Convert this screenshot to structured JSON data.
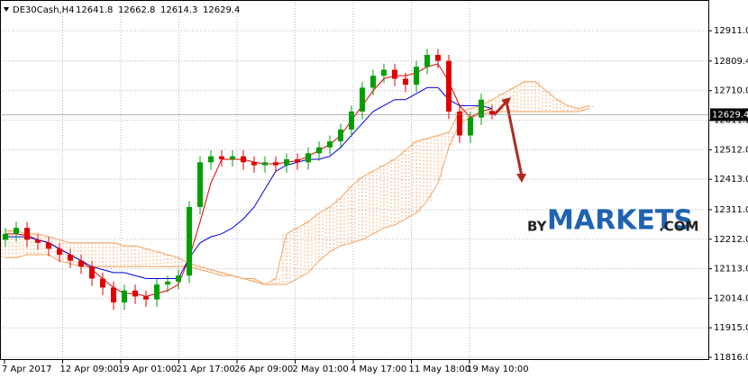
{
  "chart_data": {
    "type": "candlestick",
    "header": {
      "symbol": "DE30Cash,H4",
      "open": 12641.8,
      "high": 12662.8,
      "low": 12614.3,
      "close": 12629.4
    },
    "current_price": {
      "value": 12629.4,
      "label": "12629.4"
    },
    "ylim": [
      11807,
      13014
    ],
    "yticks": [
      {
        "value": 11816,
        "label": "11816.0"
      },
      {
        "value": 11915,
        "label": "11915.0"
      },
      {
        "value": 12014,
        "label": "12014.0"
      },
      {
        "value": 12113,
        "label": "12113.0"
      },
      {
        "value": 12212,
        "label": "12212.0"
      },
      {
        "value": 12311,
        "label": "12311.0"
      },
      {
        "value": 12413,
        "label": "12413.0"
      },
      {
        "value": 12512,
        "label": "12512.0"
      },
      {
        "value": 12611.2,
        "label": "12611.2"
      },
      {
        "value": 12710,
        "label": "12710.0"
      },
      {
        "value": 12809.4,
        "label": "12809.4"
      },
      {
        "value": 12911,
        "label": "12911.0"
      }
    ],
    "time_labels": [
      "7 Apr 2017",
      "12 Apr 09:00",
      "19 Apr 01:00",
      "21 Apr 17:00",
      "26 Apr 09:00",
      "2 May 01:00",
      "4 May 17:00",
      "11 May 18:00",
      "19 May 10:00"
    ],
    "up_color": "#00a000",
    "down_color": "#e00000",
    "open": [
      12210,
      12230,
      12250,
      12210,
      12200,
      12180,
      12160,
      12140,
      12120,
      12080,
      12050,
      12000,
      12040,
      12020,
      12010,
      12060,
      12070,
      12090,
      12320,
      12470,
      12490,
      12480,
      12490,
      12470,
      12460,
      12470,
      12460,
      12480,
      12470,
      12500,
      12520,
      12540,
      12580,
      12640,
      12720,
      12760,
      12780,
      12750,
      12730,
      12790,
      12830,
      12810,
      12640,
      12560,
      12620,
      12641.8
    ],
    "high": [
      12250,
      12270,
      12270,
      12230,
      12220,
      12200,
      12180,
      12160,
      12140,
      12100,
      12070,
      12060,
      12060,
      12040,
      12080,
      12090,
      12110,
      12340,
      12490,
      12510,
      12510,
      12510,
      12510,
      12490,
      12490,
      12490,
      12500,
      12500,
      12520,
      12540,
      12560,
      12600,
      12660,
      12740,
      12780,
      12800,
      12800,
      12770,
      12810,
      12850,
      12850,
      12830,
      12660,
      12640,
      12700,
      12662.8
    ],
    "low": [
      12185,
      12205,
      12185,
      12175,
      12155,
      12135,
      12115,
      12095,
      12055,
      12025,
      11975,
      11975,
      11995,
      11985,
      11985,
      12035,
      12045,
      12065,
      12295,
      12445,
      12455,
      12455,
      12445,
      12435,
      12435,
      12435,
      12435,
      12445,
      12445,
      12475,
      12495,
      12515,
      12555,
      12615,
      12695,
      12735,
      12725,
      12705,
      12705,
      12765,
      12785,
      12615,
      12535,
      12535,
      12595,
      12614.3
    ],
    "close": [
      12230,
      12250,
      12210,
      12200,
      12180,
      12160,
      12140,
      12120,
      12080,
      12050,
      12000,
      12040,
      12020,
      12010,
      12060,
      12070,
      12090,
      12320,
      12470,
      12490,
      12480,
      12490,
      12470,
      12460,
      12470,
      12460,
      12480,
      12470,
      12500,
      12520,
      12540,
      12580,
      12640,
      12720,
      12760,
      12780,
      12750,
      12730,
      12790,
      12830,
      12810,
      12640,
      12560,
      12620,
      12680,
      12629.4
    ],
    "series": [
      {
        "name": "tenkan",
        "color": "#e00000",
        "values": [
          12230,
          12230,
          12225,
          12210,
          12200,
          12180,
          12160,
          12140,
          12110,
          12080,
          12050,
          12030,
          12030,
          12020,
          12030,
          12040,
          12060,
          12150,
          12270,
          12400,
          12480,
          12480,
          12480,
          12470,
          12465,
          12465,
          12470,
          12475,
          12490,
          12510,
          12530,
          12560,
          12610,
          12660,
          12710,
          12750,
          12760,
          12760,
          12770,
          12790,
          12800,
          12740,
          12660,
          12620,
          12640,
          12650
        ]
      },
      {
        "name": "kijun",
        "color": "#0000e0",
        "values": [
          12220,
          12220,
          12220,
          12210,
          12200,
          12180,
          12160,
          12140,
          12120,
          12110,
          12100,
          12100,
          12090,
          12080,
          12080,
          12080,
          12080,
          12150,
          12200,
          12220,
          12230,
          12250,
          12280,
          12320,
          12380,
          12440,
          12460,
          12470,
          12480,
          12480,
          12490,
          12520,
          12560,
          12600,
          12640,
          12660,
          12680,
          12680,
          12700,
          12720,
          12720,
          12680,
          12660,
          12660,
          12660,
          12650
        ]
      }
    ],
    "cloud": {
      "color": "#f4a460",
      "span_a": [
        12240,
        12240,
        12230,
        12230,
        12220,
        12210,
        12200,
        12200,
        12200,
        12200,
        12200,
        12190,
        12190,
        12180,
        12170,
        12160,
        12150,
        12130,
        12120,
        12110,
        12100,
        12090,
        12080,
        12070,
        12060,
        12080,
        12230,
        12250,
        12270,
        12300,
        12320,
        12350,
        12390,
        12420,
        12440,
        12460,
        12480,
        12510,
        12540,
        12550,
        12560,
        12570,
        12640,
        12650,
        12660,
        12680,
        12700,
        12720,
        12740,
        12740,
        12710,
        12680,
        12660,
        12650,
        12660
      ],
      "span_b": [
        12150,
        12150,
        12160,
        12160,
        12160,
        12140,
        12130,
        12120,
        12120,
        12120,
        12120,
        12120,
        12120,
        12120,
        12120,
        12120,
        12120,
        12120,
        12110,
        12100,
        12090,
        12090,
        12080,
        12080,
        12060,
        12060,
        12060,
        12080,
        12100,
        12140,
        12170,
        12190,
        12200,
        12210,
        12230,
        12250,
        12260,
        12280,
        12300,
        12340,
        12400,
        12520,
        12600,
        12620,
        12630,
        12640,
        12640,
        12640,
        12640,
        12640,
        12640,
        12640,
        12640,
        12640,
        12650
      ]
    },
    "watermark": {
      "prefix": "BY",
      "brand": "MARKETS",
      "suffix": ".COM"
    }
  }
}
